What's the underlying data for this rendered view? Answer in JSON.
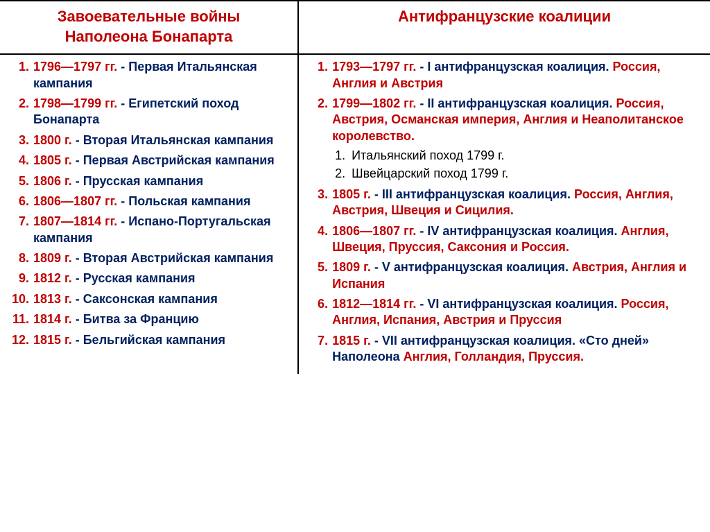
{
  "colors": {
    "red": "#c00000",
    "blue": "#002060",
    "black": "#000000",
    "border": "#000000",
    "background": "#ffffff"
  },
  "typography": {
    "header_fontsize": 22,
    "body_fontsize": 18,
    "font_family": "Arial",
    "font_weight": "bold"
  },
  "left": {
    "header_line1": "Завоевательные войны",
    "header_line2": "Наполеона Бонапарта",
    "items": [
      {
        "date": "1796—1797 гг.",
        "sep": " - ",
        "desc": "Первая Итальянская кампания"
      },
      {
        "date": "1798—1799 гг.",
        "sep": " - ",
        "desc": "Египетский поход Бонапарта"
      },
      {
        "date": "1800 г.",
        "sep": " - ",
        "desc": "Вторая Итальянская кампания"
      },
      {
        "date": "1805 г.",
        "sep": " - ",
        "desc": "Первая Австрийская кампания"
      },
      {
        "date": "1806 г.",
        "sep": " - ",
        "desc": "Прусская кампания"
      },
      {
        "date": "1806—1807 гг.",
        "sep": " - ",
        "desc": "Польская кампания"
      },
      {
        "date": "1807—1814 гг.",
        "sep": " - ",
        "desc": "Испано-Португальская кампания"
      },
      {
        "date": "1809 г.",
        "sep": " - ",
        "desc": "Вторая Австрийская кампания"
      },
      {
        "date": "1812 г.",
        "sep": " - ",
        "desc": "Русская кампания"
      },
      {
        "date": "1813 г.",
        "sep": " - ",
        "desc": "Саксонская кампания"
      },
      {
        "date": "1814 г.",
        "sep": " - ",
        "desc": "Битва за Францию"
      },
      {
        "date": "1815 г.",
        "sep": " - ",
        "desc": "Бельгийская кампания"
      }
    ]
  },
  "right": {
    "header_line1": "Антифранцузские коалиции",
    "items": [
      {
        "date": "1793—1797 гг.",
        "parts": [
          {
            "t": " - I антифранцузская коалиция. ",
            "c": "blue"
          },
          {
            "t": "Россия, Англия и Австрия",
            "c": "red"
          }
        ]
      },
      {
        "date": "1799—1802 гг.",
        "parts": [
          {
            "t": " - II антифранцузская коалиция. ",
            "c": "blue"
          },
          {
            "t": "Россия, Австрия, Османская империя, Англия и Неаполитанское королевство.",
            "c": "red"
          }
        ],
        "sub": [
          "Итальянский поход 1799 г.",
          "Швейцарский поход 1799 г."
        ]
      },
      {
        "date": "1805 г.",
        "parts": [
          {
            "t": " - III антифранцузская коалиция. ",
            "c": "blue"
          },
          {
            "t": "Россия, Англия, Австрия, Швеция и Сицилия.",
            "c": "red"
          }
        ]
      },
      {
        "date": "1806—1807 гг.",
        "parts": [
          {
            "t": " - IV антифранцузская коалиция. ",
            "c": "blue"
          },
          {
            "t": "Англия, Швеция, Пруссия, Саксония и Россия.",
            "c": "red"
          }
        ]
      },
      {
        "date": "1809 г.",
        "parts": [
          {
            "t": " - V антифранцузская коалиция. ",
            "c": "blue"
          },
          {
            "t": "Австрия, Англия и Испания",
            "c": "red"
          }
        ]
      },
      {
        "date": "1812—1814 гг.",
        "parts": [
          {
            "t": " - VI антифранцузская коалиция. ",
            "c": "blue"
          },
          {
            "t": "Россия, Англия, Испания, Австрия и Пруссия",
            "c": "red"
          }
        ]
      },
      {
        "date": "1815 г.",
        "parts": [
          {
            "t": " - VII антифранцузская коалиция. «Сто дней» Наполеона ",
            "c": "blue"
          },
          {
            "t": "Англия, Голландия, Пруссия.",
            "c": "red"
          }
        ]
      }
    ]
  }
}
